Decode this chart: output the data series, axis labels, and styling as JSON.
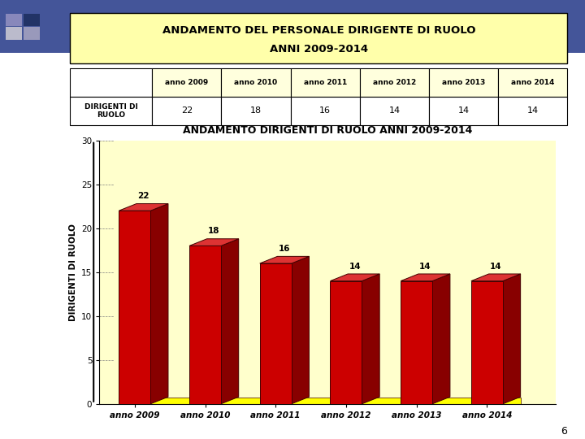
{
  "main_title_line1": "ANDAMENTO DEL PERSONALE DIRIGENTE DI RUOLO",
  "main_title_line2": "ANNI 2009-2014",
  "table_row_label": "DIRIGENTI DI\nRUOLO",
  "years": [
    "anno 2009",
    "anno 2010",
    "anno 2011",
    "anno 2012",
    "anno 2013",
    "anno 2014"
  ],
  "values": [
    22,
    18,
    16,
    14,
    14,
    14
  ],
  "chart_title": "ANDAMENTO DIRIGENTI DI RUOLO ANNI 2009-2014",
  "ylabel": "DIRIGENTI DI RUOLO",
  "bar_front_color": "#CC0000",
  "bar_right_color": "#880000",
  "bar_top_color": "#DD3333",
  "bar_edge_color": "#440000",
  "floor_color": "#FFFF00",
  "chart_bg": "#FFFFCC",
  "table_header_bg": "#FFFFDD",
  "main_title_bg": "#FFFFAA",
  "page_bg": "#FFFFFF",
  "ylim": [
    0,
    30
  ],
  "yticks": [
    0,
    5,
    10,
    15,
    20,
    25,
    30
  ],
  "page_number": "6",
  "deco_colors": [
    "#8888BB",
    "#223366",
    "#BBBBCC",
    "#9999BB"
  ]
}
